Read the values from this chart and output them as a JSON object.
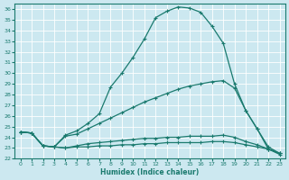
{
  "xlabel": "Humidex (Indice chaleur)",
  "bg_color": "#cce8f0",
  "grid_color": "#ffffff",
  "line_color": "#1a7a6e",
  "xlim": [
    -0.5,
    23.5
  ],
  "ylim": [
    22,
    36.5
  ],
  "xticks": [
    0,
    1,
    2,
    3,
    4,
    5,
    6,
    7,
    8,
    9,
    10,
    11,
    12,
    13,
    14,
    15,
    16,
    17,
    18,
    19,
    20,
    21,
    22,
    23
  ],
  "yticks": [
    22,
    23,
    24,
    25,
    26,
    27,
    28,
    29,
    30,
    31,
    32,
    33,
    34,
    35,
    36
  ],
  "curve1_x": [
    0,
    1,
    2,
    3,
    4,
    5,
    6,
    7,
    8,
    9,
    10,
    11,
    12,
    13,
    14,
    15,
    16,
    17,
    18,
    19,
    20,
    21,
    22,
    23
  ],
  "curve1_y": [
    24.5,
    24.4,
    23.2,
    23.1,
    24.2,
    24.6,
    25.3,
    26.2,
    28.7,
    30.0,
    31.5,
    33.2,
    35.2,
    35.8,
    36.2,
    36.1,
    35.7,
    34.4,
    32.8,
    29.0,
    26.5,
    24.8,
    22.9,
    22.4
  ],
  "curve2_x": [
    0,
    1,
    2,
    3,
    4,
    5,
    6,
    7,
    8,
    9,
    10,
    11,
    12,
    13,
    14,
    15,
    16,
    17,
    18,
    19,
    20,
    21,
    22,
    23
  ],
  "curve2_y": [
    24.5,
    24.4,
    23.2,
    23.1,
    24.1,
    24.3,
    24.8,
    25.3,
    25.8,
    26.3,
    26.8,
    27.3,
    27.7,
    28.1,
    28.5,
    28.8,
    29.0,
    29.2,
    29.3,
    28.6,
    26.5,
    24.8,
    23.1,
    22.5
  ],
  "curve3_x": [
    0,
    1,
    2,
    3,
    4,
    5,
    6,
    7,
    8,
    9,
    10,
    11,
    12,
    13,
    14,
    15,
    16,
    17,
    18,
    19,
    20,
    21,
    22,
    23
  ],
  "curve3_y": [
    24.5,
    24.4,
    23.2,
    23.1,
    23.0,
    23.1,
    23.1,
    23.2,
    23.2,
    23.3,
    23.3,
    23.4,
    23.4,
    23.5,
    23.5,
    23.5,
    23.5,
    23.6,
    23.6,
    23.5,
    23.3,
    23.1,
    22.9,
    22.5
  ],
  "curve4_x": [
    0,
    1,
    2,
    3,
    4,
    5,
    6,
    7,
    8,
    9,
    10,
    11,
    12,
    13,
    14,
    15,
    16,
    17,
    18,
    19,
    20,
    21,
    22,
    23
  ],
  "curve4_y": [
    24.5,
    24.4,
    23.2,
    23.1,
    23.0,
    23.2,
    23.4,
    23.5,
    23.6,
    23.7,
    23.8,
    23.9,
    23.9,
    24.0,
    24.0,
    24.1,
    24.1,
    24.1,
    24.2,
    24.0,
    23.6,
    23.3,
    22.9,
    22.5
  ]
}
